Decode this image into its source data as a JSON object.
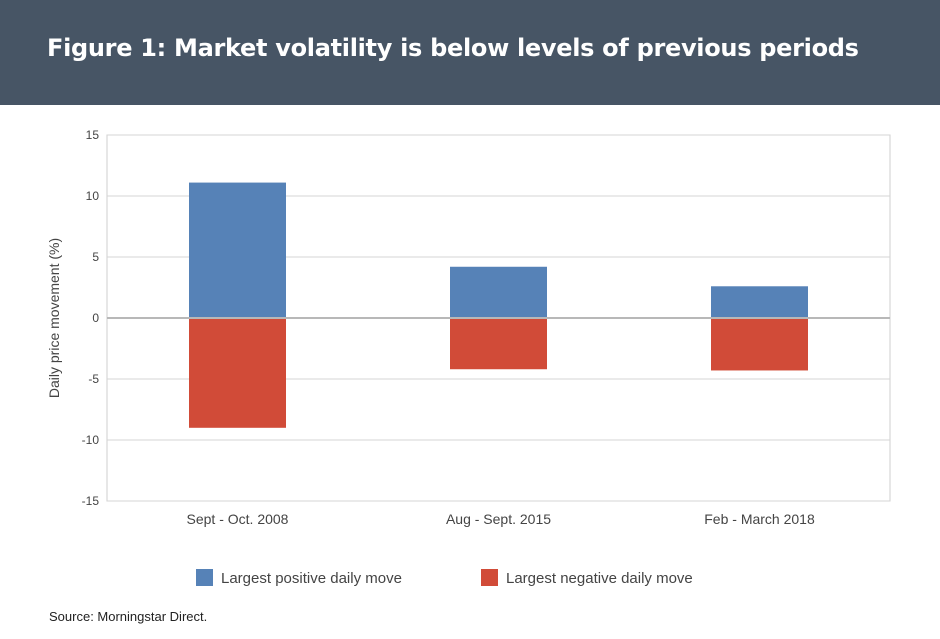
{
  "header": {
    "title": "Figure 1: Market volatility is below levels of previous periods"
  },
  "chart_data": {
    "type": "bar",
    "title": "",
    "xlabel": "",
    "ylabel": "Daily price movement (%)",
    "ylim": [
      -15,
      15
    ],
    "yticks": [
      15,
      10,
      5,
      0,
      -5,
      -10,
      -15
    ],
    "grid": true,
    "legend_position": "bottom",
    "categories": [
      "Sept - Oct. 2008",
      "Aug - Sept. 2015",
      "Feb - March 2018"
    ],
    "series": [
      {
        "name": "Largest positive daily move",
        "color": "#5682B7",
        "values": [
          11.1,
          4.2,
          2.6
        ]
      },
      {
        "name": "Largest negative daily move",
        "color": "#D14B38",
        "values": [
          -9.0,
          -4.2,
          -4.3
        ]
      }
    ]
  },
  "footer": {
    "source": "Source: Morningstar Direct."
  }
}
